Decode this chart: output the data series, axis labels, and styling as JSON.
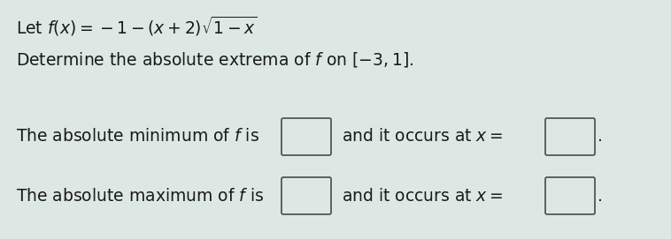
{
  "bg_color": "#dde8e4",
  "text_color": "#1a1a1a",
  "line1": "Let $f(x) = -1-(x+2)\\sqrt{1-x}$",
  "line2": "Determine the absolute extrema of $f$ on $[-3, 1]$.",
  "line3_prefix": "The absolute minimum of $f$ is",
  "line3_suffix": "and it occurs at $x =$ ",
  "line4_prefix": "The absolute maximum of $f$ is",
  "line4_suffix": "and it occurs at $x =$ ",
  "period": ".",
  "font_size": 13.5,
  "fig_width": 7.58,
  "fig_height": 2.71,
  "box_edge_color": "#555555",
  "box_face_color": "#dde8e4",
  "box_rounded_color": "#aaaaaa"
}
